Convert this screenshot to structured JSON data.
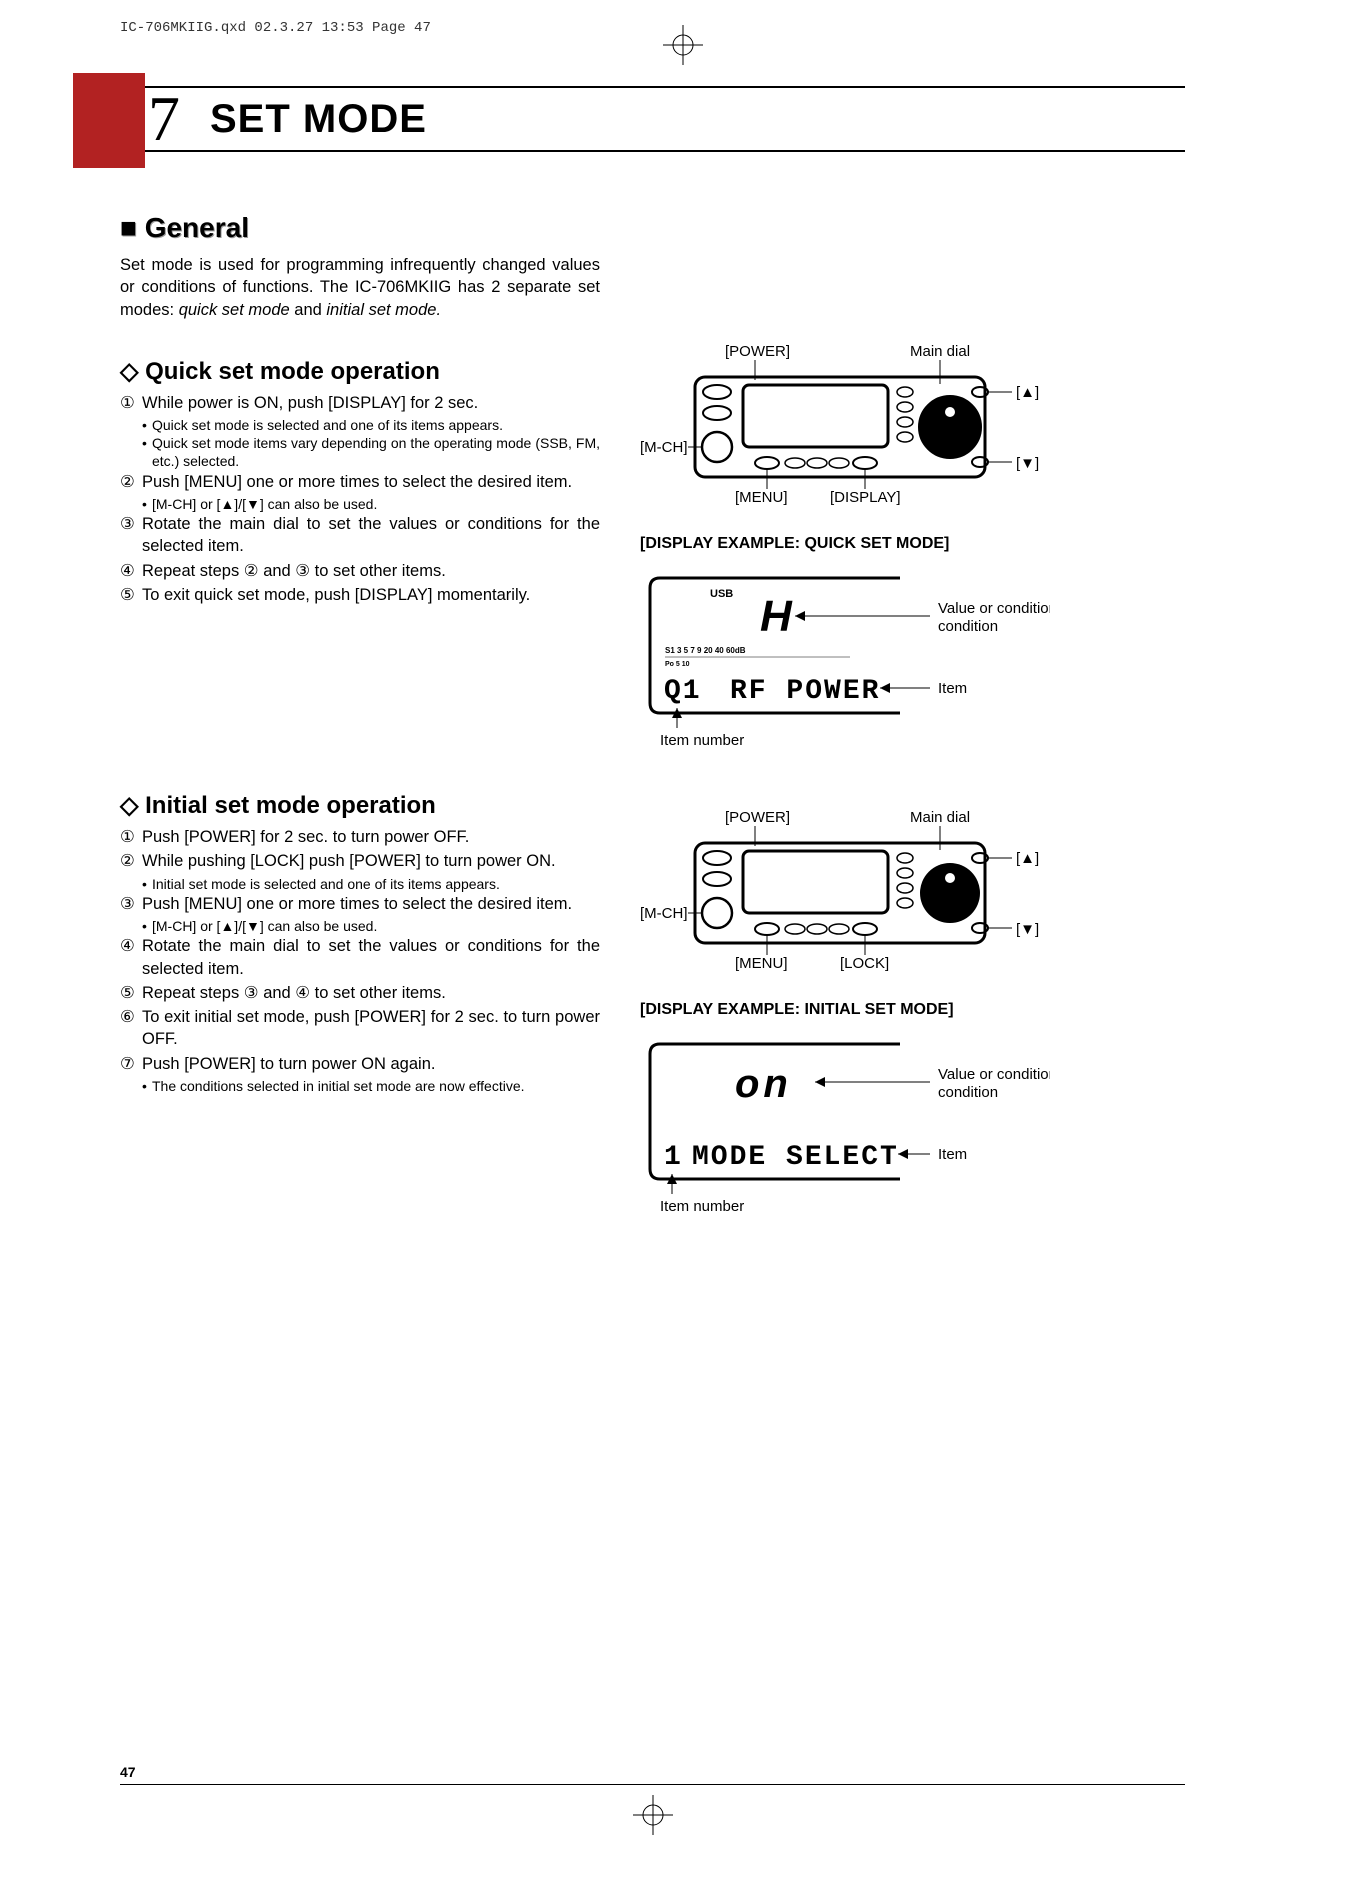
{
  "print_header": "IC-706MKIIG.qxd  02.3.27 13:53  Page 47",
  "chapter": {
    "number": "7",
    "title": "SET MODE"
  },
  "general": {
    "heading_prefix": "■ ",
    "heading": "General",
    "para1": "Set mode is used for programming infrequently changed values or conditions of functions. The IC-706MKIIG has 2 separate set modes: ",
    "para1_italic": "quick set mode",
    "para1_mid": " and ",
    "para1_italic2": "initial set mode."
  },
  "quick": {
    "heading_prefix": "◇ ",
    "heading": "Quick set mode operation",
    "steps": [
      {
        "n": "①",
        "t": "While power is ON, push [DISPLAY] for 2 sec.",
        "subs": [
          "Quick set mode is selected and one of its items appears.",
          "Quick set mode items vary depending on the operating mode (SSB, FM, etc.) selected."
        ]
      },
      {
        "n": "②",
        "t": "Push [MENU] one or more times to select the desired item.",
        "subs": [
          "[M-CH] or [▲]/[▼] can also be used."
        ]
      },
      {
        "n": "③",
        "t": "Rotate the main dial to set the values or conditions for the selected item."
      },
      {
        "n": "④",
        "t": "Repeat steps ② and ③ to set other items."
      },
      {
        "n": "⑤",
        "t": "To exit quick set mode, push [DISPLAY] momentarily."
      }
    ]
  },
  "initial": {
    "heading_prefix": "◇ ",
    "heading": "Initial set mode operation",
    "steps": [
      {
        "n": "①",
        "t": "Push [POWER] for 2 sec. to turn power OFF."
      },
      {
        "n": "②",
        "t": "While pushing [LOCK] push [POWER] to turn power ON.",
        "subs": [
          "Initial set mode is selected and one of its items appears."
        ]
      },
      {
        "n": "③",
        "t": "Push [MENU] one or more times to select the desired item.",
        "subs": [
          "[M-CH] or [▲]/[▼] can also be used."
        ]
      },
      {
        "n": "④",
        "t": "Rotate the main dial to set the values or conditions for the selected item."
      },
      {
        "n": "⑤",
        "t": "Repeat steps ③ and ④ to set other items."
      },
      {
        "n": "⑥",
        "t": "To exit initial set mode, push [POWER] for 2 sec. to turn power OFF."
      },
      {
        "n": "⑦",
        "t": "Push [POWER] to turn power ON again.",
        "subs": [
          "The conditions selected in initial set mode are now effective."
        ]
      }
    ]
  },
  "radio_callouts": {
    "power": "[POWER]",
    "maindial": "Main dial",
    "up": "[▲]",
    "down": "[▼]",
    "mch": "[M-CH]",
    "menu": "[MENU]",
    "display": "[DISPLAY]",
    "lock": "[LOCK]"
  },
  "display_quick": {
    "title": "[DISPLAY EXAMPLE: QUICK SET MODE]",
    "usb": "USB",
    "value_big": "H",
    "meter_labels": [
      "S1",
      "3",
      "5",
      "7",
      "9",
      "20",
      "40",
      "60dB"
    ],
    "po_labels": [
      "Po",
      "5",
      "10"
    ],
    "item_num": "Q1",
    "item_text": "RF POWER",
    "annot_value": "Value or condition",
    "annot_item": "Item",
    "annot_num": "Item number"
  },
  "display_initial": {
    "title": "[DISPLAY EXAMPLE: INITIAL SET MODE]",
    "value_big": "on",
    "item_num": "1",
    "item_text": "MODE SELECT",
    "annot_value": "Value or condition",
    "annot_item": "Item",
    "annot_num": "Item number"
  },
  "page_number": "47"
}
